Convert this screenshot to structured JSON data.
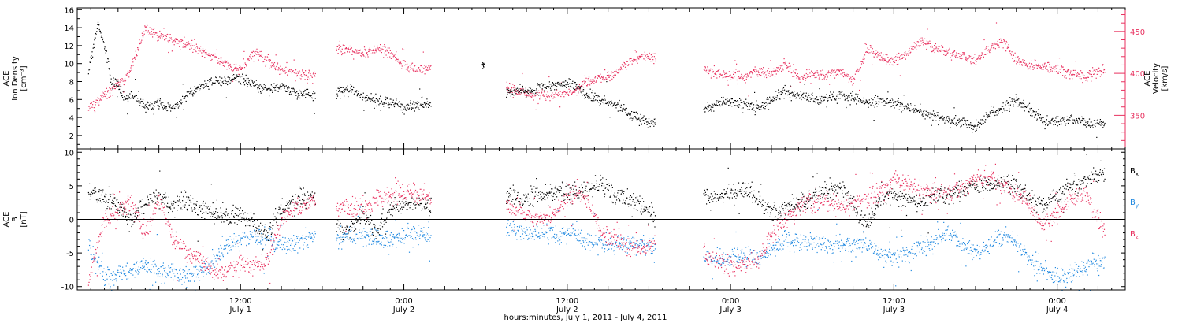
{
  "colors": {
    "black": "#000000",
    "pink": "#e8315f",
    "blue": "#1f88e0"
  },
  "figure": {
    "xlabel": "hours:minutes, July  1, 2011 - July  4, 2011",
    "x_ticks": [
      {
        "hour": 12,
        "time": "12:00",
        "day": "July 1"
      },
      {
        "hour": 24,
        "time": "0:00",
        "day": "July 2"
      },
      {
        "hour": 36,
        "time": "12:00",
        "day": "July 2"
      },
      {
        "hour": 48,
        "time": "0:00",
        "day": "July 3"
      },
      {
        "hour": 60,
        "time": "12:00",
        "day": "July 3"
      },
      {
        "hour": 72,
        "time": "0:00",
        "day": "July 4"
      }
    ]
  },
  "chart_data": [
    {
      "type": "scatter",
      "panel": "top",
      "xlim_hours": [
        0,
        77
      ],
      "ylabel_left": [
        "ACE",
        "Ion Density",
        "[cm⁻³]"
      ],
      "ylabel_right": [
        "ACE",
        "Velocity",
        "[km/s]"
      ],
      "ylim_left": [
        0.5,
        16.2
      ],
      "yticks_left": [
        2,
        4,
        6,
        8,
        10,
        12,
        14,
        16
      ],
      "ylim_right": [
        310,
        478
      ],
      "yticks_right": [
        350,
        400,
        450
      ],
      "series": [
        {
          "color": "black",
          "axis": "left",
          "segments": [
            {
              "x": [
                0.8,
                1.5,
                2.0,
                2.5,
                3.0,
                3.5,
                4.0,
                5.0,
                6.0,
                7.0,
                8.0,
                9.0,
                10.0,
                11.0,
                12.0,
                13.0,
                14.0,
                15.0,
                16.0,
                17.5
              ],
              "y": [
                9.0,
                14.5,
                12.0,
                8.0,
                7.5,
                6.0,
                6.5,
                5.2,
                5.5,
                5.0,
                6.5,
                7.5,
                8.0,
                8.3,
                8.5,
                7.5,
                7.2,
                7.5,
                6.8,
                6.5
              ]
            },
            {
              "x": [
                19.0,
                20.0,
                21.0,
                22.0,
                23.0,
                24.0,
                25.0,
                26.0
              ],
              "y": [
                6.8,
                7.2,
                6.2,
                6.0,
                5.8,
                5.2,
                5.5,
                5.6
              ]
            },
            {
              "x": [
                29.8
              ],
              "y": [
                10.0
              ]
            },
            {
              "x": [
                31.5,
                32.5,
                33.5,
                34.5,
                35.5,
                36.5,
                37.5,
                38.5,
                39.5,
                40.5,
                41.5,
                42.5
              ],
              "y": [
                6.7,
                7.2,
                7.0,
                7.5,
                7.8,
                7.7,
                6.5,
                6.0,
                5.5,
                4.5,
                3.8,
                3.5
              ]
            },
            {
              "x": [
                46.0,
                47.0,
                48.0,
                49.0,
                50.0,
                51.0,
                52.0,
                53.0,
                54.0,
                55.0,
                56.0,
                57.0,
                58.0,
                59.0,
                60.0,
                61.0,
                62.0,
                63.0,
                64.0,
                65.0,
                66.0,
                67.0,
                68.0,
                69.0,
                70.0,
                71.0,
                72.0,
                73.0,
                74.0,
                75.5
              ],
              "y": [
                5.0,
                5.6,
                5.8,
                5.5,
                5.0,
                6.0,
                7.0,
                6.5,
                6.0,
                6.2,
                6.5,
                6.2,
                5.8,
                6.0,
                5.7,
                5.2,
                4.8,
                4.2,
                3.8,
                3.5,
                3.0,
                4.5,
                5.0,
                6.0,
                5.0,
                3.5,
                3.6,
                3.8,
                3.5,
                3.3
              ]
            }
          ]
        },
        {
          "color": "pink",
          "axis": "right",
          "segments": [
            {
              "x": [
                0.8,
                1.5,
                2.0,
                2.5,
                3.0,
                3.5,
                4.0,
                5.0,
                6.0,
                7.0,
                8.0,
                9.0,
                10.0,
                11.0,
                12.0,
                13.0,
                14.0,
                15.0,
                16.0,
                17.5
              ],
              "y": [
                360,
                368,
                375,
                382,
                390,
                395,
                410,
                455,
                445,
                440,
                435,
                428,
                420,
                410,
                405,
                425,
                415,
                405,
                400,
                398
              ]
            },
            {
              "x": [
                19.0,
                20.0,
                21.0,
                22.0,
                23.0,
                24.0,
                25.0,
                26.0
              ],
              "y": [
                430,
                428,
                425,
                430,
                425,
                410,
                405,
                408
              ]
            },
            {
              "x": [
                31.5,
                32.5,
                33.5,
                34.5,
                35.5,
                36.5,
                37.5,
                38.5,
                39.5,
                40.5,
                41.5,
                42.5
              ],
              "y": [
                385,
                378,
                375,
                373,
                376,
                378,
                390,
                395,
                400,
                415,
                420,
                418
              ]
            },
            {
              "x": [
                46.0,
                47.0,
                48.0,
                49.0,
                50.0,
                51.0,
                52.0,
                53.0,
                54.0,
                55.0,
                56.0,
                57.0,
                58.0,
                59.0,
                60.0,
                61.0,
                62.0,
                63.0,
                64.0,
                65.0,
                66.0,
                67.0,
                68.0,
                69.0,
                70.0,
                71.0,
                72.0,
                73.0,
                74.0,
                75.5
              ],
              "y": [
                405,
                400,
                398,
                395,
                405,
                400,
                410,
                395,
                400,
                398,
                405,
                390,
                430,
                420,
                415,
                425,
                440,
                430,
                425,
                420,
                415,
                430,
                440,
                415,
                410,
                408,
                405,
                400,
                398,
                405
              ]
            }
          ]
        }
      ]
    },
    {
      "type": "scatter",
      "panel": "bottom",
      "xlim_hours": [
        0,
        77
      ],
      "ylabel_left": [
        "ACE",
        "B",
        "[nT]"
      ],
      "ylim": [
        -10.5,
        10.5
      ],
      "yticks": [
        -10,
        -5,
        0,
        5,
        10
      ],
      "zero_line": true,
      "legend": [
        {
          "base": "B",
          "sub": "x",
          "color": "black"
        },
        {
          "base": "B",
          "sub": "y",
          "color": "blue"
        },
        {
          "base": "B",
          "sub": "z",
          "color": "pink"
        }
      ],
      "series": [
        {
          "name": "Bx",
          "color": "black",
          "segments": [
            {
              "x": [
                0.8,
                2.0,
                3.0,
                4.0,
                5.0,
                6.0,
                7.0,
                8.0,
                9.0,
                10.0,
                11.0,
                12.0,
                13.0,
                14.0,
                15.0,
                16.0,
                17.5
              ],
              "y": [
                4.0,
                3.5,
                2.0,
                0.0,
                3.0,
                3.5,
                2.0,
                3.0,
                1.5,
                1.0,
                0.5,
                1.0,
                -1.0,
                -2.0,
                2.0,
                3.0,
                3.5
              ]
            },
            {
              "x": [
                19.0,
                20.0,
                21.0,
                22.0,
                23.0,
                24.0,
                25.0,
                26.0
              ],
              "y": [
                -1.0,
                -1.5,
                1.0,
                -2.0,
                1.5,
                2.0,
                2.5,
                2.0
              ]
            },
            {
              "x": [
                31.5,
                32.5,
                33.5,
                34.5,
                35.5,
                36.5,
                37.5,
                38.5,
                39.5,
                40.5,
                41.5,
                42.5
              ],
              "y": [
                3.5,
                3.0,
                3.5,
                4.0,
                4.2,
                4.0,
                4.5,
                5.0,
                4.0,
                3.0,
                2.0,
                0.0
              ]
            },
            {
              "x": [
                46.0,
                47.0,
                48.0,
                49.0,
                50.0,
                51.0,
                52.0,
                53.0,
                54.0,
                55.0,
                56.0,
                57.0,
                58.0,
                59.0,
                60.0,
                61.0,
                62.0,
                63.0,
                64.0,
                65.0,
                66.0,
                67.0,
                68.0,
                69.0,
                70.0,
                71.0,
                72.0,
                73.0,
                74.0,
                75.5
              ],
              "y": [
                3.5,
                3.0,
                4.0,
                4.5,
                3.0,
                1.0,
                2.0,
                2.5,
                3.5,
                4.5,
                5.0,
                2.0,
                -1.0,
                3.0,
                3.5,
                3.0,
                2.5,
                3.5,
                4.0,
                4.5,
                5.0,
                5.2,
                5.5,
                5.0,
                3.0,
                2.0,
                3.5,
                5.0,
                6.0,
                7.0
              ]
            }
          ]
        },
        {
          "name": "By",
          "color": "blue",
          "segments": [
            {
              "x": [
                0.8,
                2.0,
                3.0,
                4.0,
                5.0,
                6.0,
                7.0,
                8.0,
                9.0,
                10.0,
                11.0,
                12.0,
                13.0,
                14.0,
                15.0,
                16.0,
                17.5
              ],
              "y": [
                -4.0,
                -8.5,
                -8.0,
                -7.5,
                -7.0,
                -7.5,
                -8.0,
                -8.5,
                -8.0,
                -6.0,
                -4.0,
                -3.0,
                -2.5,
                -3.0,
                -4.0,
                -3.5,
                -2.0
              ]
            },
            {
              "x": [
                19.0,
                20.0,
                21.0,
                22.0,
                23.0,
                24.0,
                25.0,
                26.0
              ],
              "y": [
                -3.0,
                -2.5,
                -2.5,
                -3.0,
                -3.0,
                -2.5,
                -2.0,
                -2.5
              ]
            },
            {
              "x": [
                31.5,
                32.5,
                33.5,
                34.5,
                35.5,
                36.5,
                37.5,
                38.5,
                39.5,
                40.5,
                41.5,
                42.5
              ],
              "y": [
                -1.0,
                -1.5,
                -2.0,
                -2.0,
                -2.5,
                -1.5,
                -3.5,
                -3.5,
                -3.5,
                -3.5,
                -3.8,
                -4.0
              ]
            },
            {
              "x": [
                46.0,
                47.0,
                48.0,
                49.0,
                50.0,
                51.0,
                52.0,
                53.0,
                54.0,
                55.0,
                56.0,
                57.0,
                58.0,
                59.0,
                60.0,
                61.0,
                62.0,
                63.0,
                64.0,
                65.0,
                66.0,
                67.0,
                68.0,
                69.0,
                70.0,
                71.0,
                72.0,
                73.0,
                74.0,
                75.5
              ],
              "y": [
                -5.5,
                -6.0,
                -5.5,
                -5.5,
                -6.0,
                -4.5,
                -3.0,
                -3.5,
                -3.0,
                -4.0,
                -3.5,
                -4.0,
                -3.5,
                -5.0,
                -6.0,
                -5.0,
                -4.0,
                -3.0,
                -2.0,
                -4.0,
                -5.0,
                -4.0,
                -2.0,
                -3.5,
                -6.0,
                -7.5,
                -8.5,
                -8.0,
                -7.0,
                -6.0
              ]
            }
          ]
        },
        {
          "name": "Bz",
          "color": "pink",
          "segments": [
            {
              "x": [
                0.8,
                2.0,
                3.0,
                4.0,
                5.0,
                6.0,
                7.0,
                8.0,
                9.0,
                10.0,
                11.0,
                12.0,
                13.0,
                14.0,
                15.0,
                16.0,
                17.5
              ],
              "y": [
                -9.0,
                0.0,
                1.5,
                2.5,
                -2.0,
                3.0,
                -3.0,
                -5.0,
                -6.0,
                -8.0,
                -7.5,
                -6.0,
                -7.0,
                -6.0,
                0.0,
                2.0,
                3.0
              ]
            },
            {
              "x": [
                19.0,
                20.0,
                21.0,
                22.0,
                23.0,
                24.0,
                25.0,
                26.0
              ],
              "y": [
                2.0,
                1.5,
                2.0,
                3.0,
                3.5,
                4.0,
                4.0,
                3.5
              ]
            },
            {
              "x": [
                31.5,
                32.5,
                33.5,
                34.5,
                35.5,
                36.5,
                37.5,
                38.5,
                39.5,
                40.5,
                41.5,
                42.5
              ],
              "y": [
                2.0,
                1.5,
                0.5,
                0.0,
                2.0,
                4.0,
                3.0,
                -2.0,
                -3.5,
                -4.0,
                -4.2,
                -3.5
              ]
            },
            {
              "x": [
                46.0,
                47.0,
                48.0,
                49.0,
                50.0,
                51.0,
                52.0,
                53.0,
                54.0,
                55.0,
                56.0,
                57.0,
                58.0,
                59.0,
                60.0,
                61.0,
                62.0,
                63.0,
                64.0,
                65.0,
                66.0,
                67.0,
                68.0,
                69.0,
                70.0,
                71.0,
                72.0,
                73.0,
                74.0,
                75.5
              ],
              "y": [
                -5.0,
                -6.0,
                -7.0,
                -6.5,
                -6.0,
                -2.0,
                0.0,
                2.0,
                2.5,
                3.0,
                2.0,
                2.5,
                3.5,
                4.0,
                6.0,
                5.0,
                4.5,
                4.0,
                4.0,
                5.0,
                6.0,
                6.5,
                5.0,
                4.0,
                2.0,
                -1.0,
                1.0,
                3.0,
                4.0,
                -2.0
              ]
            }
          ]
        }
      ]
    }
  ]
}
